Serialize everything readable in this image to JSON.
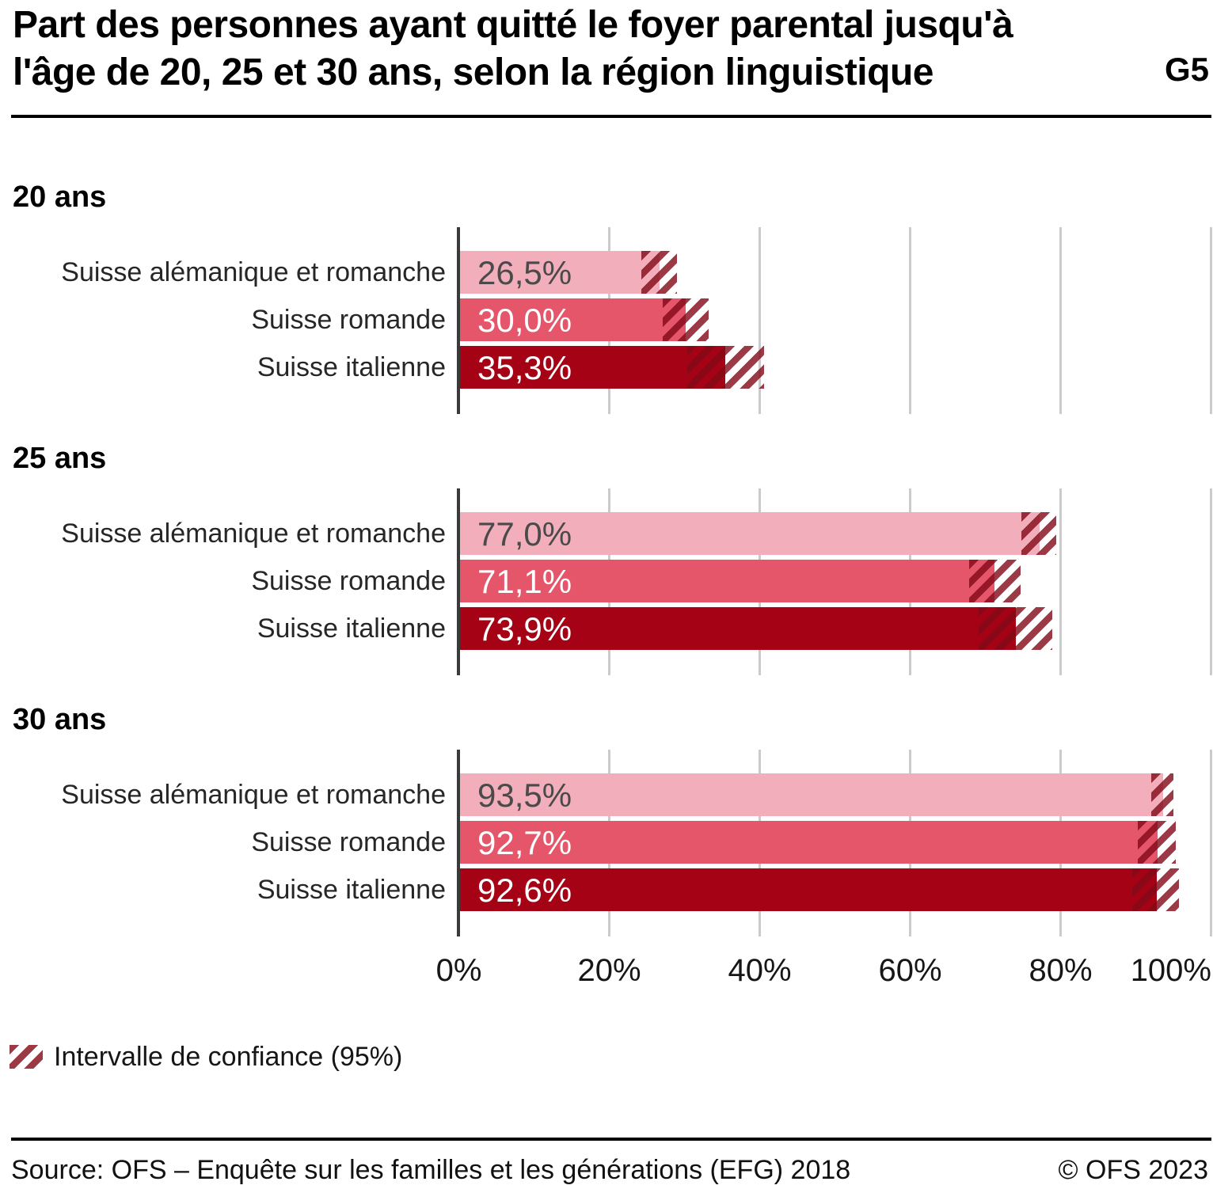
{
  "title": {
    "line1": "Part des personnes ayant quitté le foyer parental jusqu'à",
    "line2": "l'âge de 20, 25 et 30 ans, selon la région linguistique",
    "figure_id": "G5"
  },
  "legend": {
    "label": "Intervalle de confiance (95%)"
  },
  "footer": {
    "source": "Source: OFS – Enquête sur les familles et les générations (EFG) 2018",
    "copyright": "© OFS 2023"
  },
  "colors": {
    "series": [
      "#f3aebb",
      "#e6566a",
      "#a50315"
    ],
    "value_text": [
      "#4a4a4a",
      "#ffffff",
      "#ffffff"
    ],
    "ci_stripe": "rgba(130,9,23,0.8)",
    "gridline": "#cbcbcb",
    "axis_line": "#3a3a3a"
  },
  "chart_data": {
    "type": "bar",
    "orientation": "horizontal",
    "unit": "%",
    "xlim": [
      0,
      100
    ],
    "grid": true,
    "x_ticks": [
      {
        "value": 0,
        "label": "0%"
      },
      {
        "value": 20,
        "label": "20%"
      },
      {
        "value": 40,
        "label": "40%"
      },
      {
        "value": 60,
        "label": "60%"
      },
      {
        "value": 80,
        "label": "80%"
      },
      {
        "value": 100,
        "label": "100%"
      }
    ],
    "categories": [
      "Suisse alémanique et romanche",
      "Suisse romande",
      "Suisse italienne"
    ],
    "ci_label": "Intervalle de confiance (95%)",
    "groups": [
      {
        "label": "20 ans",
        "rows": [
          {
            "category": "Suisse alémanique et romanche",
            "value": 26.5,
            "value_label": "26,5%",
            "ci": [
              24.1,
              28.8
            ]
          },
          {
            "category": "Suisse romande",
            "value": 30.0,
            "value_label": "30,0%",
            "ci": [
              26.9,
              33.1
            ]
          },
          {
            "category": "Suisse italienne",
            "value": 35.3,
            "value_label": "35,3%",
            "ci": [
              30.2,
              40.4
            ]
          }
        ]
      },
      {
        "label": "25 ans",
        "rows": [
          {
            "category": "Suisse alémanique et romanche",
            "value": 77.0,
            "value_label": "77,0%",
            "ci": [
              74.6,
              79.3
            ]
          },
          {
            "category": "Suisse romande",
            "value": 71.1,
            "value_label": "71,1%",
            "ci": [
              67.7,
              74.5
            ]
          },
          {
            "category": "Suisse italienne",
            "value": 73.9,
            "value_label": "73,9%",
            "ci": [
              68.9,
              78.7
            ]
          }
        ]
      },
      {
        "label": "30 ans",
        "rows": [
          {
            "category": "Suisse alémanique et romanche",
            "value": 93.5,
            "value_label": "93,5%",
            "ci": [
              91.9,
              94.8
            ]
          },
          {
            "category": "Suisse romande",
            "value": 92.7,
            "value_label": "92,7%",
            "ci": [
              90.1,
              95.2
            ]
          },
          {
            "category": "Suisse italienne",
            "value": 92.6,
            "value_label": "92,6%",
            "ci": [
              89.4,
              95.6
            ]
          }
        ]
      }
    ]
  }
}
